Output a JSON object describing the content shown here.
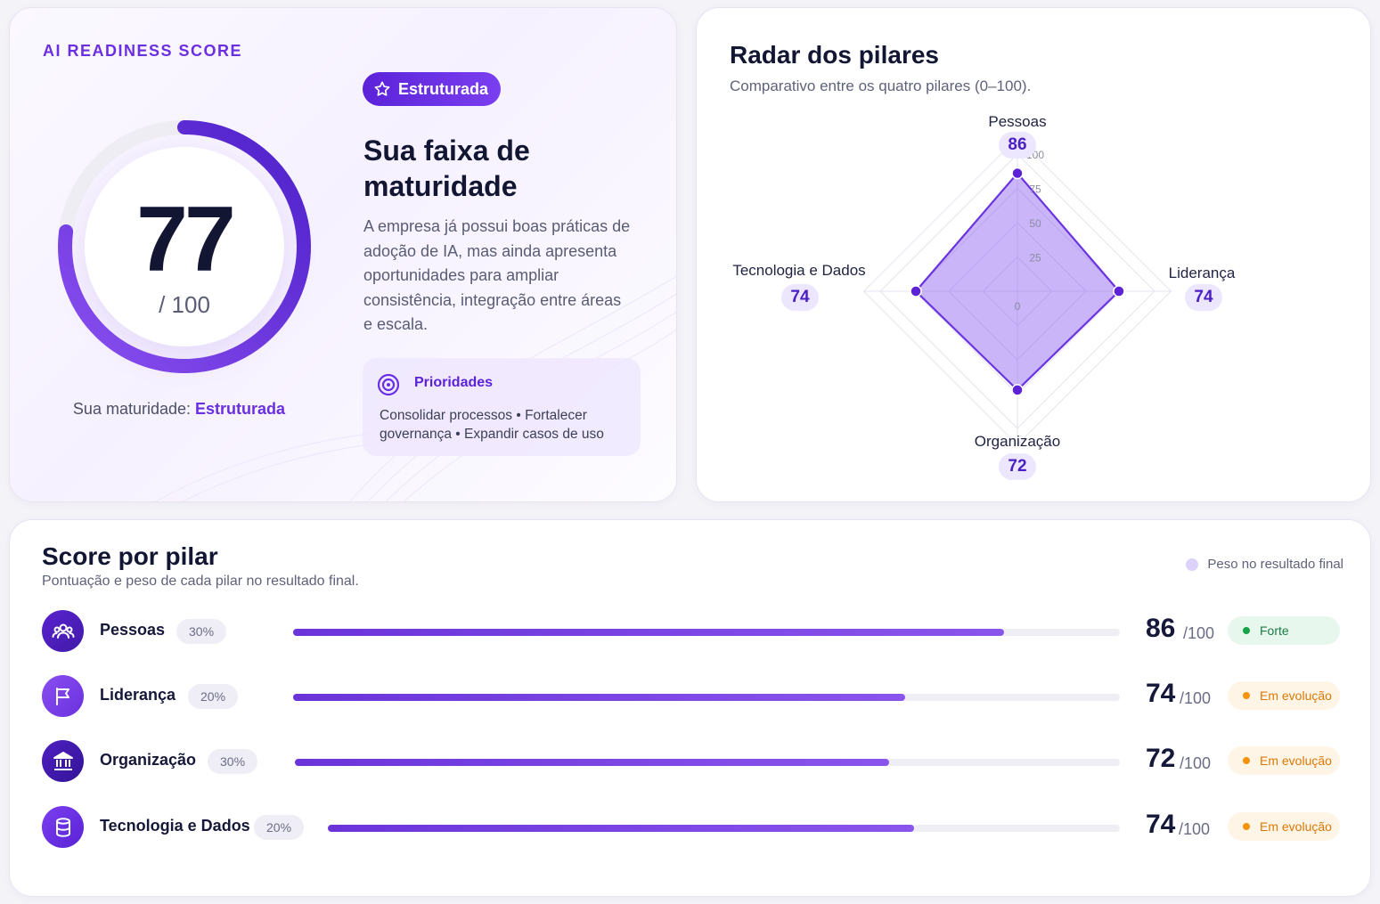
{
  "score_card": {
    "eyebrow": "AI READINESS SCORE",
    "score": 77,
    "score_value": "77",
    "score_max": "/ 100",
    "maturity_prefix": "Sua maturidade:",
    "maturity_value": "Estruturada",
    "level_badge": "Estruturada",
    "band_title": "Sua faixa de maturidade",
    "band_description": "A empresa já possui boas práticas de adoção de IA, mas ainda apresenta oportunidades para ampliar consistência, integração entre áreas e escala.",
    "priorities_title": "Prioridades",
    "priorities_text": "Consolidar processos • Fortalecer governança • Expandir casos de uso"
  },
  "radar_card": {
    "title": "Radar dos pilares",
    "subtitle": "Comparativo entre os quatro pilares (0–100)."
  },
  "chart_data": {
    "type": "radar",
    "title": "Radar dos pilares",
    "subtitle": "Comparativo entre os quatro pilares (0–100).",
    "axes": [
      "Pessoas",
      "Liderança",
      "Organização",
      "Tecnologia e Dados"
    ],
    "values": [
      86,
      74,
      72,
      74
    ],
    "value_labels": [
      "86",
      "74",
      "72",
      "74"
    ],
    "rlim": [
      0,
      100
    ],
    "rings": [
      25,
      50,
      75,
      100
    ],
    "ring_labels": [
      "0",
      "25",
      "50",
      "75",
      "100"
    ]
  },
  "pillars_card": {
    "title": "Score por pilar",
    "subtitle": "Pontuação e peso de cada pilar no resultado final.",
    "legend": "Peso no resultado final",
    "rows": [
      {
        "name": "Pessoas",
        "weight": "30%",
        "score": 86,
        "score_label": "86",
        "max": "/100",
        "status": "Forte",
        "icon": "people-icon"
      },
      {
        "name": "Liderança",
        "weight": "20%",
        "score": 74,
        "score_label": "74",
        "max": "/100",
        "status": "Em evolução",
        "icon": "flag-icon"
      },
      {
        "name": "Organização",
        "weight": "30%",
        "score": 72,
        "score_label": "72",
        "max": "/100",
        "status": "Em evolução",
        "icon": "bank-icon"
      },
      {
        "name": "Tecnologia e Dados",
        "weight": "20%",
        "score": 74,
        "score_label": "74",
        "max": "/100",
        "status": "Em evolução",
        "icon": "database-icon"
      }
    ]
  },
  "colors": {
    "accent": "#6a2fe0",
    "accent_dark": "#4a1fc2",
    "strong": "#16a34a",
    "evolving": "#f5940c"
  }
}
